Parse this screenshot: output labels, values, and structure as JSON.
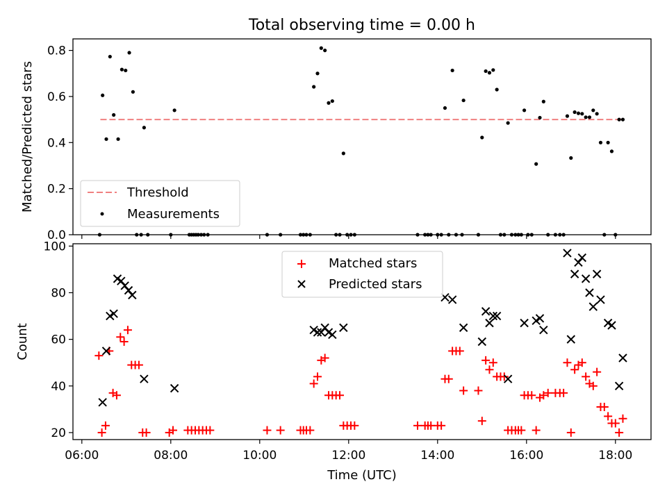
{
  "figure": {
    "title": "Total observing time = 0.00 h",
    "xlabel": "Time (UTC)"
  },
  "chart_data": [
    {
      "type": "scatter",
      "ylabel": "Matched/Predicted stars",
      "xlim": [
        "05:48",
        "18:48"
      ],
      "ylim": [
        0,
        0.85
      ],
      "yticks": [
        "0.0",
        "0.2",
        "0.4",
        "0.6",
        "0.8"
      ],
      "xticks": [
        "06:00",
        "08:00",
        "10:00",
        "12:00",
        "14:00",
        "16:00",
        "18:00"
      ],
      "xtick_labels_visible": false,
      "legend": {
        "placement": "lower-left",
        "entries": [
          "Threshold",
          "Measurements"
        ]
      },
      "threshold": {
        "name": "Threshold",
        "value": 0.5,
        "x_range": [
          "06:25",
          "18:10"
        ],
        "style": "dashed",
        "color": "#f08080"
      },
      "series": [
        {
          "name": "Measurements",
          "marker": "dot",
          "color": "#000000",
          "points": [
            [
              "06:24",
              0.0
            ],
            [
              "06:28",
              0.605
            ],
            [
              "06:33",
              0.415
            ],
            [
              "06:38",
              0.773
            ],
            [
              "06:43",
              0.52
            ],
            [
              "06:49",
              0.415
            ],
            [
              "06:54",
              0.717
            ],
            [
              "06:59",
              0.713
            ],
            [
              "07:04",
              0.79
            ],
            [
              "07:09",
              0.62
            ],
            [
              "07:14",
              0.0
            ],
            [
              "07:20",
              0.0
            ],
            [
              "07:24",
              0.465
            ],
            [
              "07:29",
              0.0
            ],
            [
              "08:00",
              0.0
            ],
            [
              "08:05",
              0.54
            ],
            [
              "08:25",
              0.0
            ],
            [
              "08:28",
              0.0
            ],
            [
              "08:31",
              0.0
            ],
            [
              "08:34",
              0.0
            ],
            [
              "08:37",
              0.0
            ],
            [
              "08:41",
              0.0
            ],
            [
              "08:45",
              0.0
            ],
            [
              "08:50",
              0.0
            ],
            [
              "10:10",
              0.0
            ],
            [
              "10:28",
              0.0
            ],
            [
              "10:55",
              0.0
            ],
            [
              "10:59",
              0.0
            ],
            [
              "11:03",
              0.0
            ],
            [
              "11:08",
              0.0
            ],
            [
              "11:13",
              0.642
            ],
            [
              "11:18",
              0.7
            ],
            [
              "11:23",
              0.81
            ],
            [
              "11:28",
              0.8
            ],
            [
              "11:33",
              0.572
            ],
            [
              "11:38",
              0.58
            ],
            [
              "11:43",
              0.0
            ],
            [
              "11:48",
              0.0
            ],
            [
              "11:53",
              0.353
            ],
            [
              "11:58",
              0.0
            ],
            [
              "12:03",
              0.0
            ],
            [
              "12:08",
              0.0
            ],
            [
              "13:33",
              0.0
            ],
            [
              "13:43",
              0.0
            ],
            [
              "13:47",
              0.0
            ],
            [
              "13:51",
              0.0
            ],
            [
              "14:00",
              0.0
            ],
            [
              "14:05",
              0.0
            ],
            [
              "14:10",
              0.55
            ],
            [
              "14:15",
              0.0
            ],
            [
              "14:20",
              0.713
            ],
            [
              "14:25",
              0.0
            ],
            [
              "14:33",
              0.0
            ],
            [
              "14:35",
              0.583
            ],
            [
              "14:55",
              0.0
            ],
            [
              "15:00",
              0.422
            ],
            [
              "15:05",
              0.71
            ],
            [
              "15:10",
              0.703
            ],
            [
              "15:15",
              0.715
            ],
            [
              "15:20",
              0.63
            ],
            [
              "15:25",
              0.0
            ],
            [
              "15:30",
              0.0
            ],
            [
              "15:35",
              0.485
            ],
            [
              "15:40",
              0.0
            ],
            [
              "15:45",
              0.0
            ],
            [
              "15:49",
              0.0
            ],
            [
              "15:53",
              0.0
            ],
            [
              "15:57",
              0.54
            ],
            [
              "16:02",
              0.0
            ],
            [
              "16:07",
              0.0
            ],
            [
              "16:13",
              0.307
            ],
            [
              "16:18",
              0.508
            ],
            [
              "16:23",
              0.578
            ],
            [
              "16:29",
              0.0
            ],
            [
              "16:39",
              0.0
            ],
            [
              "16:45",
              0.0
            ],
            [
              "16:50",
              0.0
            ],
            [
              "16:55",
              0.515
            ],
            [
              "17:00",
              0.333
            ],
            [
              "17:05",
              0.532
            ],
            [
              "17:10",
              0.527
            ],
            [
              "17:15",
              0.525
            ],
            [
              "17:20",
              0.51
            ],
            [
              "17:25",
              0.51
            ],
            [
              "17:30",
              0.54
            ],
            [
              "17:35",
              0.525
            ],
            [
              "17:40",
              0.4
            ],
            [
              "17:45",
              0.0
            ],
            [
              "17:50",
              0.4
            ],
            [
              "17:55",
              0.362
            ],
            [
              "18:00",
              0.0
            ],
            [
              "18:05",
              0.5
            ],
            [
              "18:10",
              0.5
            ]
          ]
        }
      ]
    },
    {
      "type": "scatter",
      "ylabel": "Count",
      "xlim": [
        "05:48",
        "18:48"
      ],
      "ylim": [
        17,
        101
      ],
      "yticks": [
        "20",
        "40",
        "60",
        "80",
        "100"
      ],
      "xticks": [
        "06:00",
        "08:00",
        "10:00",
        "12:00",
        "14:00",
        "16:00",
        "18:00"
      ],
      "legend": {
        "placement": "upper-center",
        "entries": [
          "Matched stars",
          "Predicted stars"
        ]
      },
      "series": [
        {
          "name": "Matched stars",
          "marker": "plus",
          "color": "#ff0000",
          "points": [
            [
              "06:23",
              53
            ],
            [
              "06:27",
              20
            ],
            [
              "06:32",
              23
            ],
            [
              "06:37",
              55
            ],
            [
              "06:42",
              37
            ],
            [
              "06:47",
              36
            ],
            [
              "06:52",
              61
            ],
            [
              "06:57",
              59
            ],
            [
              "07:02",
              64
            ],
            [
              "07:07",
              49
            ],
            [
              "07:12",
              49
            ],
            [
              "07:17",
              49
            ],
            [
              "07:22",
              20
            ],
            [
              "07:27",
              20
            ],
            [
              "07:58",
              20
            ],
            [
              "08:03",
              21
            ],
            [
              "08:23",
              21
            ],
            [
              "08:28",
              21
            ],
            [
              "08:33",
              21
            ],
            [
              "08:38",
              21
            ],
            [
              "08:43",
              21
            ],
            [
              "08:48",
              21
            ],
            [
              "08:53",
              21
            ],
            [
              "10:10",
              21
            ],
            [
              "10:28",
              21
            ],
            [
              "10:55",
              21
            ],
            [
              "10:59",
              21
            ],
            [
              "11:03",
              21
            ],
            [
              "11:08",
              21
            ],
            [
              "11:13",
              41
            ],
            [
              "11:18",
              44
            ],
            [
              "11:23",
              51
            ],
            [
              "11:28",
              52
            ],
            [
              "11:33",
              36
            ],
            [
              "11:38",
              36
            ],
            [
              "11:43",
              36
            ],
            [
              "11:48",
              36
            ],
            [
              "11:53",
              23
            ],
            [
              "11:58",
              23
            ],
            [
              "12:03",
              23
            ],
            [
              "12:08",
              23
            ],
            [
              "13:33",
              23
            ],
            [
              "13:43",
              23
            ],
            [
              "13:47",
              23
            ],
            [
              "13:51",
              23
            ],
            [
              "14:00",
              23
            ],
            [
              "14:05",
              23
            ],
            [
              "14:10",
              43
            ],
            [
              "14:15",
              43
            ],
            [
              "14:20",
              55
            ],
            [
              "14:25",
              55
            ],
            [
              "14:30",
              55
            ],
            [
              "14:35",
              38
            ],
            [
              "14:55",
              38
            ],
            [
              "15:00",
              25
            ],
            [
              "15:05",
              51
            ],
            [
              "15:10",
              47
            ],
            [
              "15:15",
              50
            ],
            [
              "15:20",
              44
            ],
            [
              "15:25",
              44
            ],
            [
              "15:30",
              44
            ],
            [
              "15:35",
              21
            ],
            [
              "15:40",
              21
            ],
            [
              "15:45",
              21
            ],
            [
              "15:49",
              21
            ],
            [
              "15:53",
              21
            ],
            [
              "15:57",
              36
            ],
            [
              "16:02",
              36
            ],
            [
              "16:07",
              36
            ],
            [
              "16:13",
              21
            ],
            [
              "16:18",
              35
            ],
            [
              "16:23",
              36
            ],
            [
              "16:29",
              37
            ],
            [
              "16:39",
              37
            ],
            [
              "16:45",
              37
            ],
            [
              "16:50",
              37
            ],
            [
              "16:55",
              50
            ],
            [
              "17:00",
              20
            ],
            [
              "17:05",
              47
            ],
            [
              "17:10",
              49
            ],
            [
              "17:15",
              50
            ],
            [
              "17:20",
              44
            ],
            [
              "17:25",
              41
            ],
            [
              "17:30",
              40
            ],
            [
              "17:35",
              46
            ],
            [
              "17:40",
              31
            ],
            [
              "17:45",
              31
            ],
            [
              "17:50",
              27
            ],
            [
              "17:55",
              24
            ],
            [
              "18:00",
              24
            ],
            [
              "18:05",
              20
            ],
            [
              "18:10",
              26
            ]
          ]
        },
        {
          "name": "Predicted stars",
          "marker": "cross",
          "color": "#000000",
          "points": [
            [
              "06:28",
              33
            ],
            [
              "06:33",
              55
            ],
            [
              "06:38",
              70
            ],
            [
              "06:43",
              71
            ],
            [
              "06:48",
              86
            ],
            [
              "06:53",
              85
            ],
            [
              "06:58",
              83
            ],
            [
              "07:03",
              81
            ],
            [
              "07:08",
              79
            ],
            [
              "07:24",
              43
            ],
            [
              "08:05",
              39
            ],
            [
              "11:13",
              64
            ],
            [
              "11:18",
              63
            ],
            [
              "11:23",
              63
            ],
            [
              "11:28",
              65
            ],
            [
              "11:33",
              63
            ],
            [
              "11:38",
              62
            ],
            [
              "11:53",
              65
            ],
            [
              "14:10",
              78
            ],
            [
              "14:20",
              77
            ],
            [
              "14:35",
              65
            ],
            [
              "15:00",
              59
            ],
            [
              "15:05",
              72
            ],
            [
              "15:10",
              67
            ],
            [
              "15:15",
              70
            ],
            [
              "15:20",
              70
            ],
            [
              "15:35",
              43
            ],
            [
              "15:57",
              67
            ],
            [
              "16:13",
              68
            ],
            [
              "16:18",
              69
            ],
            [
              "16:23",
              64
            ],
            [
              "16:55",
              97
            ],
            [
              "17:00",
              60
            ],
            [
              "17:05",
              88
            ],
            [
              "17:10",
              93
            ],
            [
              "17:15",
              95
            ],
            [
              "17:20",
              86
            ],
            [
              "17:25",
              80
            ],
            [
              "17:30",
              74
            ],
            [
              "17:35",
              88
            ],
            [
              "17:40",
              77
            ],
            [
              "17:50",
              67
            ],
            [
              "17:55",
              66
            ],
            [
              "18:05",
              40
            ],
            [
              "18:10",
              52
            ]
          ]
        }
      ]
    }
  ]
}
